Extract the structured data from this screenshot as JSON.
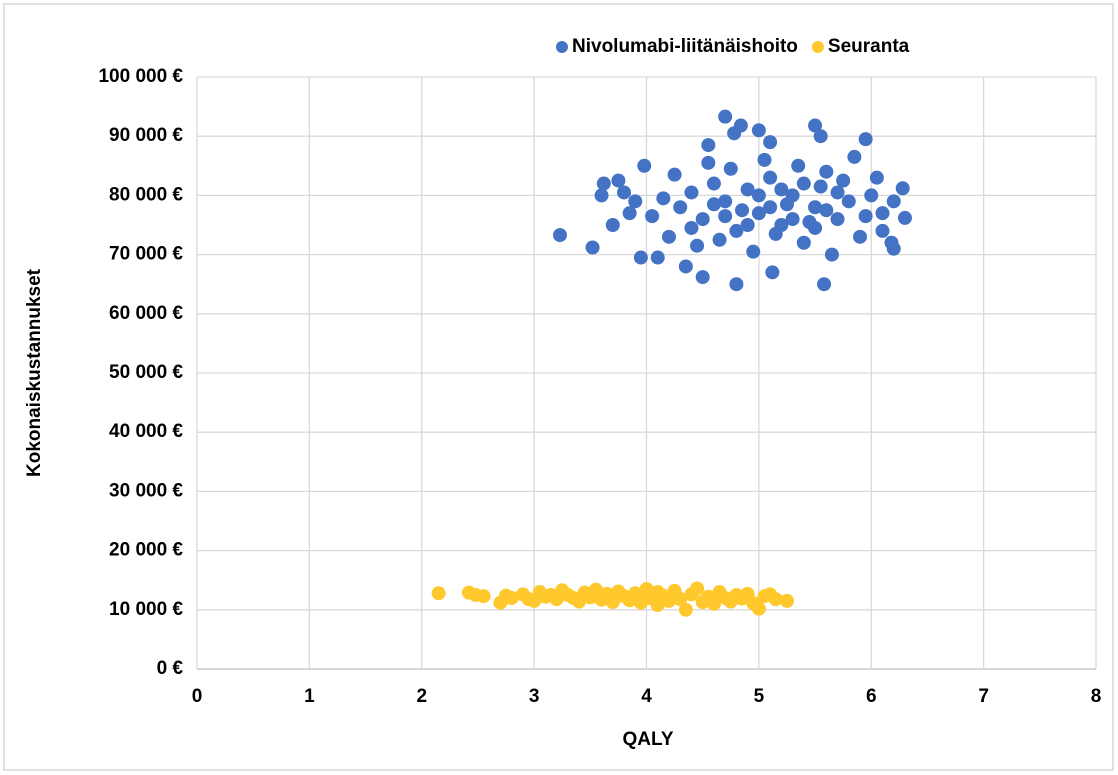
{
  "chart_data": {
    "type": "scatter",
    "xlabel": "QALY",
    "ylabel": "Kokonaiskustannukset",
    "xlim": [
      0,
      8
    ],
    "xticks": [
      0,
      1,
      2,
      3,
      4,
      5,
      6,
      7,
      8
    ],
    "ylim": [
      0,
      100000
    ],
    "yticks": [
      {
        "value": 0,
        "label": "0 €"
      },
      {
        "value": 10000,
        "label": "10 000 €"
      },
      {
        "value": 20000,
        "label": "20 000 €"
      },
      {
        "value": 30000,
        "label": "30 000 €"
      },
      {
        "value": 40000,
        "label": "40 000 €"
      },
      {
        "value": 50000,
        "label": "50 000 €"
      },
      {
        "value": 60000,
        "label": "60 000 €"
      },
      {
        "value": 70000,
        "label": "70 000 €"
      },
      {
        "value": 80000,
        "label": "80 000 €"
      },
      {
        "value": 90000,
        "label": "90 000 €"
      },
      {
        "value": 100000,
        "label": "100 000 €"
      }
    ],
    "grid": true,
    "legend": "top",
    "series": [
      {
        "name": "Nivolumabi-liitänäishoito",
        "color": "#4472c4",
        "x": [
          3.23,
          3.52,
          3.6,
          3.62,
          3.7,
          3.75,
          3.95,
          4.1,
          3.98,
          4.7,
          4.78,
          4.84,
          4.55,
          5.0,
          5.1,
          5.5,
          5.55,
          5.95,
          4.8,
          5.58,
          4.5,
          4.35,
          5.12,
          6.28,
          6.3,
          6.2,
          6.18,
          4.3,
          4.4,
          4.5,
          4.6,
          4.7,
          4.8,
          4.9,
          5.0,
          5.1,
          5.2,
          5.3,
          5.4,
          5.5,
          5.6,
          5.7,
          5.8,
          5.9,
          6.0,
          6.1,
          4.2,
          4.25,
          4.45,
          4.55,
          4.65,
          4.75,
          4.85,
          4.95,
          5.05,
          5.15,
          5.25,
          5.35,
          5.45,
          5.55,
          5.65,
          5.75,
          5.85,
          5.95,
          6.05,
          4.15,
          4.05,
          3.9,
          3.85,
          3.8,
          5.0,
          5.1,
          5.2,
          4.9,
          5.3,
          5.4,
          4.7,
          4.6,
          5.5,
          5.6,
          5.7,
          4.4,
          6.1,
          6.2
        ],
        "values": [
          73300,
          71200,
          80000,
          82000,
          75000,
          82500,
          69500,
          69500,
          85000,
          93300,
          90500,
          91800,
          88500,
          91000,
          89000,
          91800,
          90000,
          89500,
          65000,
          65000,
          66200,
          68000,
          67000,
          81200,
          76200,
          71000,
          72000,
          78000,
          80500,
          76000,
          82000,
          79000,
          74000,
          81000,
          77000,
          83000,
          75000,
          80000,
          72000,
          78000,
          84000,
          76000,
          79000,
          73000,
          80000,
          77000,
          73000,
          83500,
          71500,
          85500,
          72500,
          84500,
          77500,
          70500,
          86000,
          73500,
          78500,
          85000,
          75500,
          81500,
          70000,
          82500,
          86500,
          76500,
          83000,
          79500,
          76500,
          79000,
          77000,
          80500,
          80000,
          78000,
          81000,
          75000,
          76000,
          82000,
          76500,
          78500,
          74500,
          77500,
          80500,
          74500,
          74000,
          79000
        ]
      },
      {
        "name": "Seuranta",
        "color": "#ffc82c",
        "x": [
          2.15,
          2.42,
          2.48,
          2.55,
          2.7,
          2.75,
          2.8,
          2.9,
          3.0,
          3.05,
          3.1,
          3.2,
          3.25,
          3.3,
          3.4,
          3.45,
          3.5,
          3.55,
          3.6,
          3.65,
          3.7,
          3.75,
          3.8,
          3.85,
          3.9,
          3.95,
          4.0,
          4.0,
          4.05,
          4.1,
          4.1,
          4.15,
          4.2,
          4.25,
          4.3,
          4.35,
          4.4,
          4.45,
          4.5,
          4.55,
          4.6,
          4.65,
          4.7,
          4.75,
          4.8,
          4.85,
          4.9,
          4.95,
          5.0,
          5.05,
          5.1,
          5.15,
          5.25,
          3.35,
          3.15,
          2.95
        ],
        "values": [
          12800,
          12900,
          12500,
          12300,
          11200,
          12400,
          12000,
          12600,
          11500,
          13000,
          12200,
          11800,
          13300,
          12500,
          11400,
          12900,
          12100,
          13400,
          11700,
          12700,
          11300,
          13100,
          12300,
          11600,
          12800,
          11200,
          13500,
          12000,
          11900,
          13000,
          10800,
          12400,
          11500,
          13200,
          11800,
          10000,
          12600,
          13600,
          11300,
          12200,
          11000,
          13000,
          12000,
          11400,
          12500,
          11900,
          12700,
          11100,
          10200,
          12300,
          12600,
          11800,
          11500,
          12000,
          12500,
          11800
        ]
      }
    ]
  }
}
